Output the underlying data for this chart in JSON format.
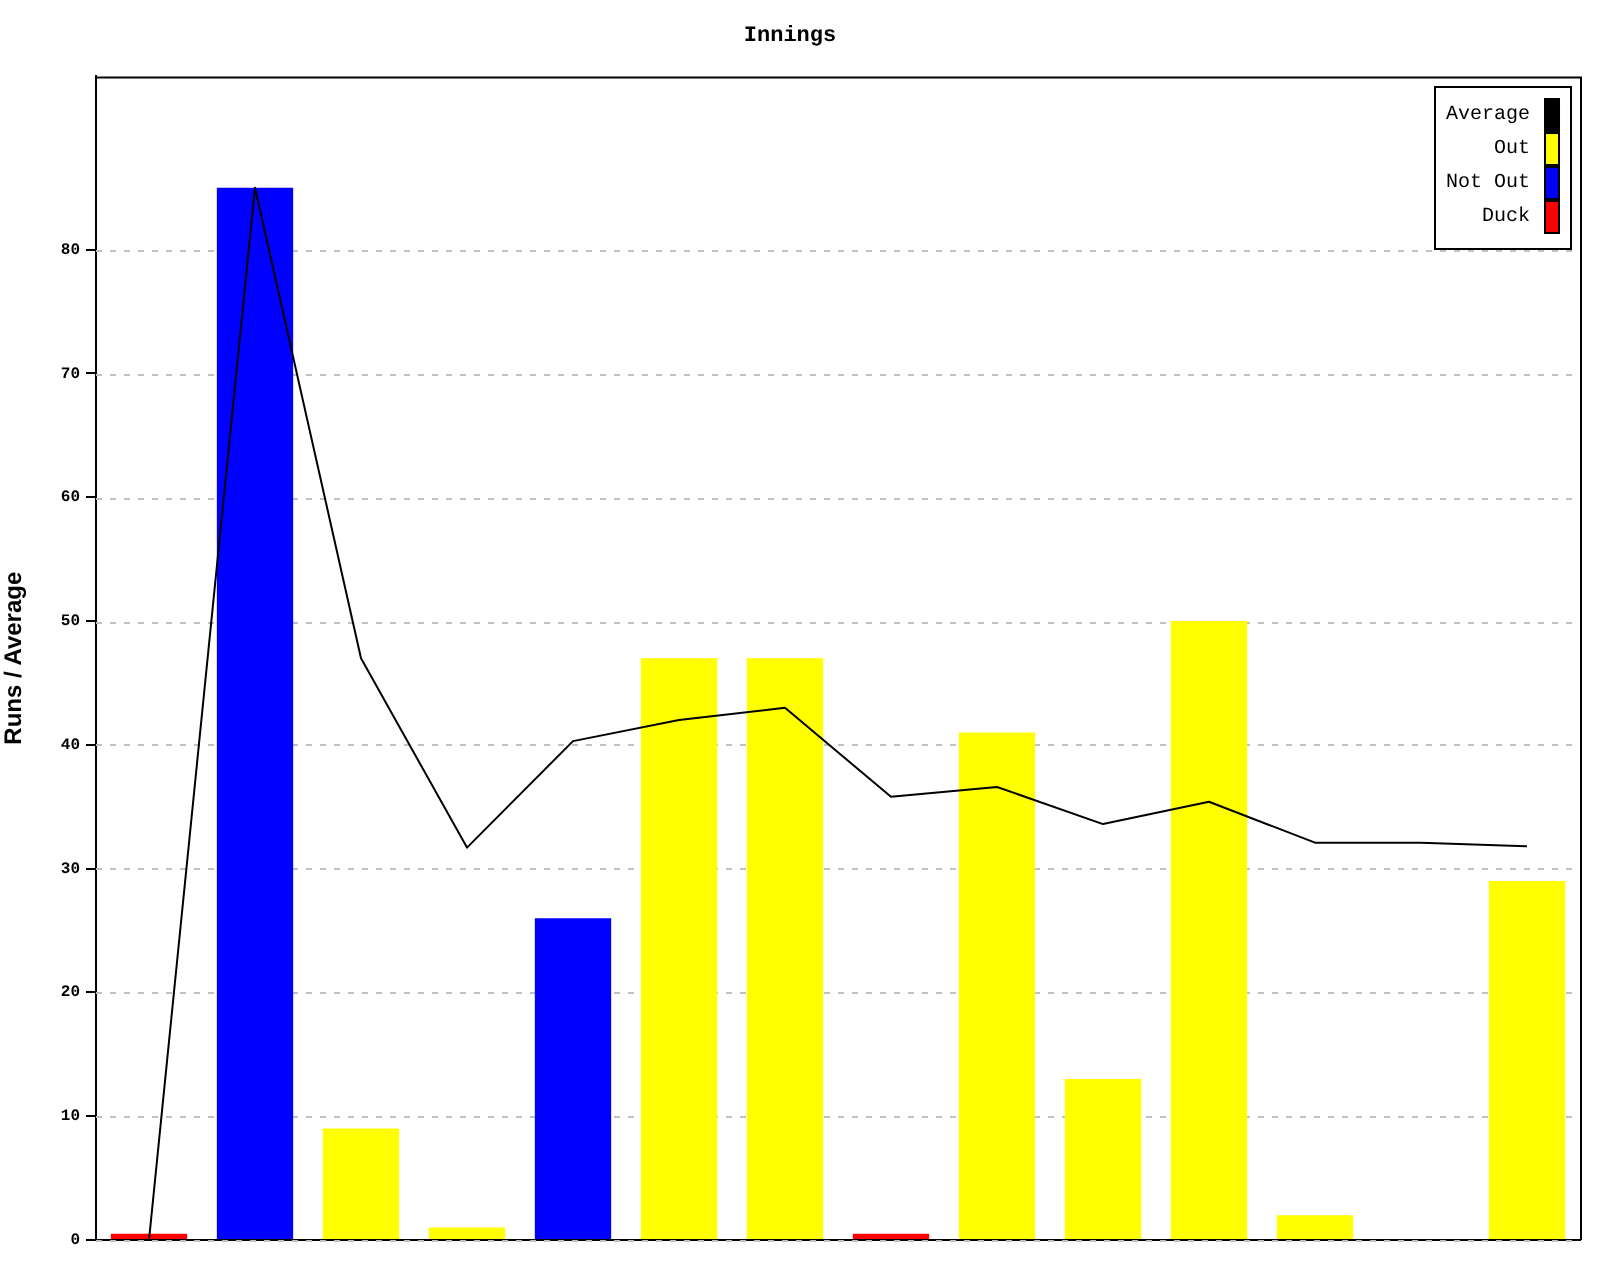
{
  "chart_data": {
    "type": "bar",
    "title": "Innings",
    "ylabel": "Runs / Average",
    "categories": [
      null,
      null,
      null,
      null,
      null,
      null,
      null,
      null,
      null,
      null,
      null,
      null,
      null,
      null
    ],
    "series": [
      {
        "name": "Average",
        "type": "line",
        "color": "#000000",
        "values": [
          0,
          85,
          47,
          31.7,
          40.3,
          42,
          43,
          35.8,
          36.6,
          33.6,
          35.4,
          32.1,
          32.1,
          31.8
        ]
      },
      {
        "name": "Out",
        "color": "#ffff00",
        "values": [
          null,
          null,
          9,
          1,
          null,
          47,
          47,
          null,
          41,
          13,
          50,
          2,
          null,
          29
        ]
      },
      {
        "name": "Not Out",
        "color": "#0000ff",
        "values": [
          null,
          85,
          null,
          null,
          26,
          null,
          null,
          null,
          null,
          null,
          null,
          null,
          null,
          null
        ]
      },
      {
        "name": "Duck",
        "color": "#ff0000",
        "values": [
          0.5,
          null,
          null,
          null,
          null,
          null,
          null,
          0.5,
          null,
          null,
          null,
          null,
          null,
          null
        ]
      }
    ],
    "stacked": true,
    "ylim": [
      0,
      94
    ],
    "yticks": [
      0,
      10,
      20,
      30,
      40,
      50,
      60,
      70,
      80
    ],
    "grid": "y",
    "legend": "top right",
    "tick_labels": "y",
    "marker": "none"
  }
}
